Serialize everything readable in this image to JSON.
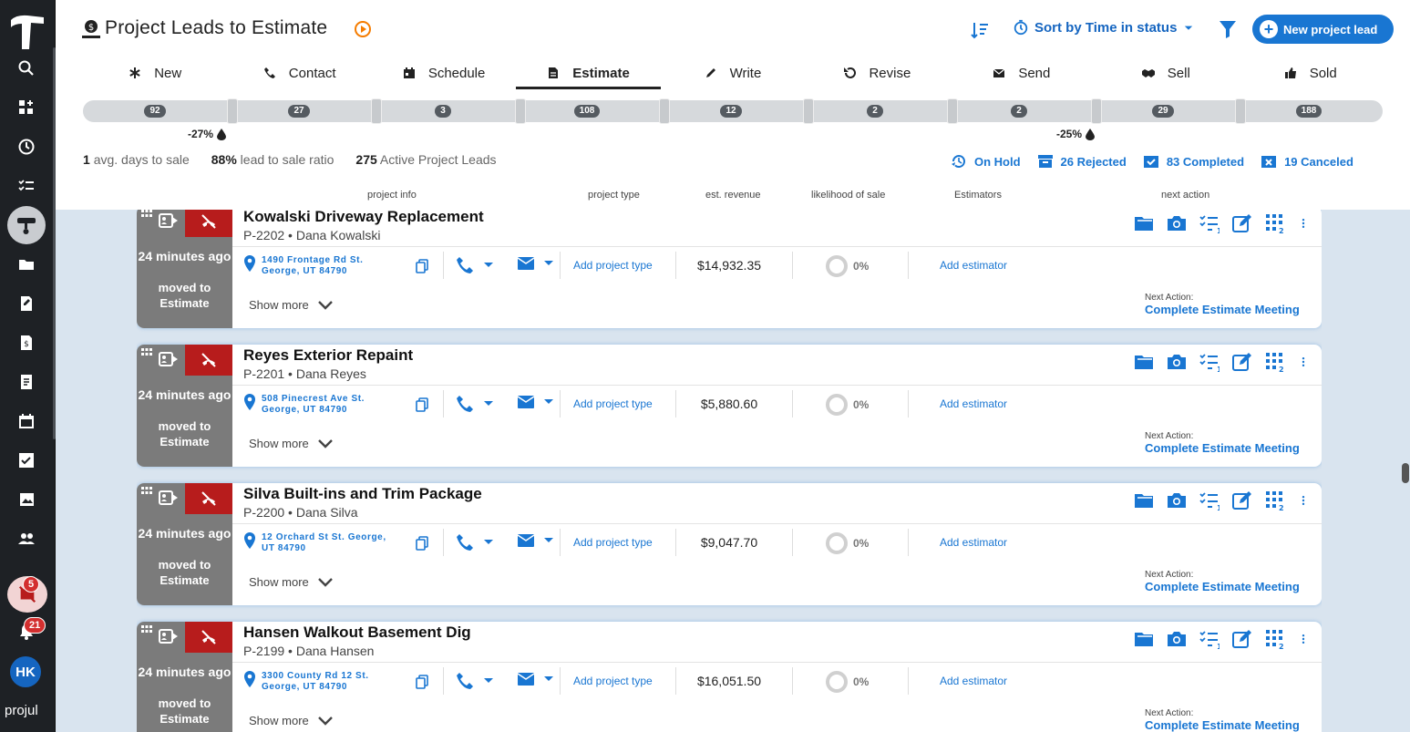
{
  "app": {
    "brand": "projul"
  },
  "header": {
    "title": "Project Leads to Estimate",
    "sort_label": "Sort by Time in status",
    "new_button": "New project lead"
  },
  "tabs": [
    {
      "label": "New",
      "icon": "asterisk-icon"
    },
    {
      "label": "Contact",
      "icon": "phone-icon"
    },
    {
      "label": "Schedule",
      "icon": "calendar-icon"
    },
    {
      "label": "Estimate",
      "icon": "document-icon",
      "active": true
    },
    {
      "label": "Write",
      "icon": "pencil-icon"
    },
    {
      "label": "Revise",
      "icon": "undo-icon"
    },
    {
      "label": "Send",
      "icon": "mail-icon"
    },
    {
      "label": "Sell",
      "icon": "handshake-icon"
    },
    {
      "label": "Sold",
      "icon": "thumbs-up-icon"
    }
  ],
  "pipeline": {
    "counts": [
      "92",
      "27",
      "3",
      "108",
      "12",
      "2",
      "2",
      "29",
      "188"
    ],
    "drop_left": "-27%",
    "drop_right": "-25%"
  },
  "stats": {
    "avg_days": "1",
    "avg_days_label": "avg. days to sale",
    "ratio": "88%",
    "ratio_label": "lead to sale ratio",
    "active": "275",
    "active_label": "Active Project Leads"
  },
  "status_links": {
    "on_hold": "On Hold",
    "rejected": "26 Rejected",
    "completed": "83 Completed",
    "canceled": "19 Canceled"
  },
  "columns": {
    "project_info": "project info",
    "project_type": "project type",
    "est_revenue": "est. revenue",
    "likelihood": "likelihood of sale",
    "estimators": "Estimators",
    "next_action": "next action"
  },
  "sidebar": {
    "alert_badge": "5",
    "notification_badge": "21",
    "avatar": "HK"
  },
  "cards": [
    {
      "time": "24 minutes ago",
      "moved": "moved to Estimate",
      "title": "Kowalski Driveway Replacement",
      "id": "P-2202",
      "client": "Dana Kowalski",
      "address": "1490 Frontage Rd St. George, UT 84790",
      "project_type": "Add project type",
      "revenue": "$14,932.35",
      "likelihood": "0%",
      "estimator": "Add estimator",
      "show_more": "Show more",
      "next_label": "Next Action:",
      "next_action": "Complete Estimate Meeting",
      "checklist_count": "1",
      "grid_count": "2"
    },
    {
      "time": "24 minutes ago",
      "moved": "moved to Estimate",
      "title": "Reyes Exterior Repaint",
      "id": "P-2201",
      "client": "Dana Reyes",
      "address": "508 Pinecrest Ave St. George, UT 84790",
      "project_type": "Add project type",
      "revenue": "$5,880.60",
      "likelihood": "0%",
      "estimator": "Add estimator",
      "show_more": "Show more",
      "next_label": "Next Action:",
      "next_action": "Complete Estimate Meeting",
      "checklist_count": "1",
      "grid_count": "2"
    },
    {
      "time": "24 minutes ago",
      "moved": "moved to Estimate",
      "title": "Silva Built-ins and Trim Package",
      "id": "P-2200",
      "client": "Dana Silva",
      "address": "12 Orchard St St. George, UT 84790",
      "project_type": "Add project type",
      "revenue": "$9,047.70",
      "likelihood": "0%",
      "estimator": "Add estimator",
      "show_more": "Show more",
      "next_label": "Next Action:",
      "next_action": "Complete Estimate Meeting",
      "checklist_count": "1",
      "grid_count": "2"
    },
    {
      "time": "24 minutes ago",
      "moved": "moved to Estimate",
      "title": "Hansen Walkout Basement Dig",
      "id": "P-2199",
      "client": "Dana Hansen",
      "address": "3300 County Rd 12 St. George, UT 84790",
      "project_type": "Add project type",
      "revenue": "$16,051.50",
      "likelihood": "0%",
      "estimator": "Add estimator",
      "show_more": "Show more",
      "next_label": "Next Action:",
      "next_action": "Complete Estimate Meeting",
      "checklist_count": "1",
      "grid_count": "2"
    }
  ],
  "colors": {
    "accent": "#1976d2",
    "sidebar": "#1e2125",
    "card_time": "#7b7b7b",
    "alert_red": "#b71c1c"
  }
}
